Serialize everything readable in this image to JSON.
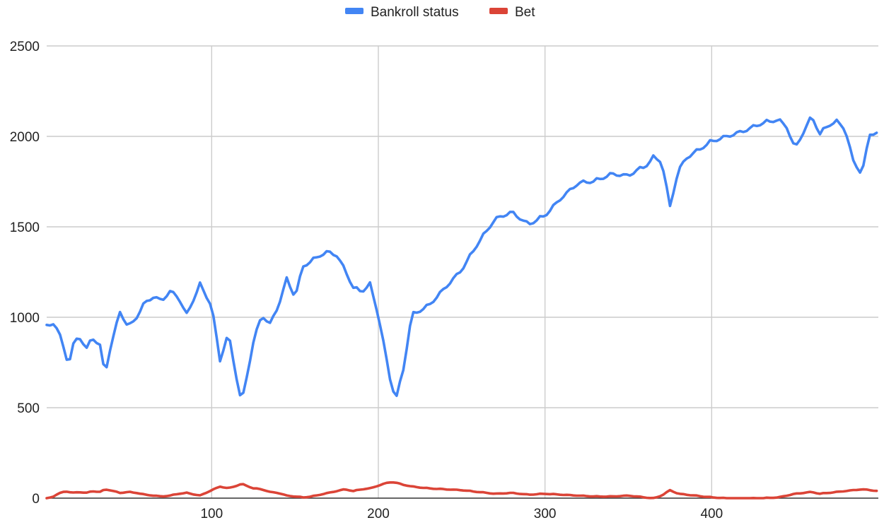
{
  "chart_data": {
    "type": "line",
    "title": "",
    "xlabel": "",
    "ylabel": "",
    "xlim": [
      1,
      500
    ],
    "ylim": [
      0,
      2500
    ],
    "x_ticks": [
      100,
      200,
      300,
      400
    ],
    "y_ticks": [
      0,
      500,
      1000,
      1500,
      2000,
      2500
    ],
    "grid": true,
    "legend_position": "top",
    "x_knots": [
      1,
      5,
      8,
      12,
      14,
      17,
      20,
      25,
      28,
      33,
      36,
      39,
      45,
      50,
      55,
      60,
      65,
      70,
      75,
      80,
      85,
      93,
      100,
      105,
      110,
      115,
      118,
      125,
      130,
      135,
      140,
      145,
      150,
      155,
      160,
      165,
      170,
      175,
      180,
      185,
      190,
      195,
      200,
      205,
      208,
      211,
      215,
      220,
      230,
      240,
      250,
      260,
      270,
      280,
      290,
      300,
      310,
      320,
      330,
      340,
      350,
      355,
      360,
      365,
      370,
      375,
      380,
      385,
      390,
      395,
      400,
      410,
      420,
      430,
      440,
      445,
      450,
      455,
      460,
      465,
      470,
      475,
      480,
      485,
      490,
      495,
      500
    ],
    "series": [
      {
        "name": "Bankroll status",
        "color": "#4285f4",
        "jitter": 45,
        "values": [
          990,
          1005,
          960,
          850,
          770,
          880,
          940,
          860,
          930,
          880,
          720,
          860,
          1070,
          980,
          1040,
          1120,
          1150,
          1130,
          1180,
          1150,
          1050,
          1220,
          1100,
          800,
          950,
          700,
          560,
          900,
          1050,
          1000,
          1100,
          1250,
          1150,
          1320,
          1350,
          1380,
          1400,
          1380,
          1300,
          1200,
          1180,
          1220,
          1050,
          800,
          650,
          600,
          750,
          1050,
          1100,
          1200,
          1300,
          1450,
          1580,
          1620,
          1550,
          1600,
          1700,
          1780,
          1790,
          1830,
          1820,
          1850,
          1870,
          1920,
          1900,
          1650,
          1850,
          1920,
          1950,
          1980,
          2010,
          2040,
          2070,
          2110,
          2130,
          2090,
          1970,
          2060,
          2150,
          2050,
          2100,
          2120,
          2080,
          1900,
          1830,
          2050,
          2060
        ]
      },
      {
        "name": "Bet",
        "color": "#db4437",
        "jitter": 7,
        "values": [
          5,
          15,
          30,
          45,
          40,
          35,
          40,
          35,
          45,
          40,
          55,
          50,
          35,
          40,
          35,
          25,
          20,
          15,
          20,
          30,
          35,
          20,
          50,
          70,
          60,
          75,
          85,
          60,
          55,
          40,
          35,
          20,
          15,
          10,
          15,
          25,
          35,
          45,
          55,
          45,
          55,
          60,
          75,
          90,
          95,
          90,
          80,
          70,
          60,
          55,
          50,
          40,
          30,
          35,
          25,
          30,
          25,
          20,
          15,
          15,
          20,
          15,
          10,
          5,
          20,
          50,
          30,
          25,
          20,
          15,
          10,
          5,
          5,
          5,
          10,
          20,
          30,
          35,
          40,
          30,
          35,
          40,
          45,
          50,
          55,
          50,
          45
        ]
      }
    ]
  }
}
